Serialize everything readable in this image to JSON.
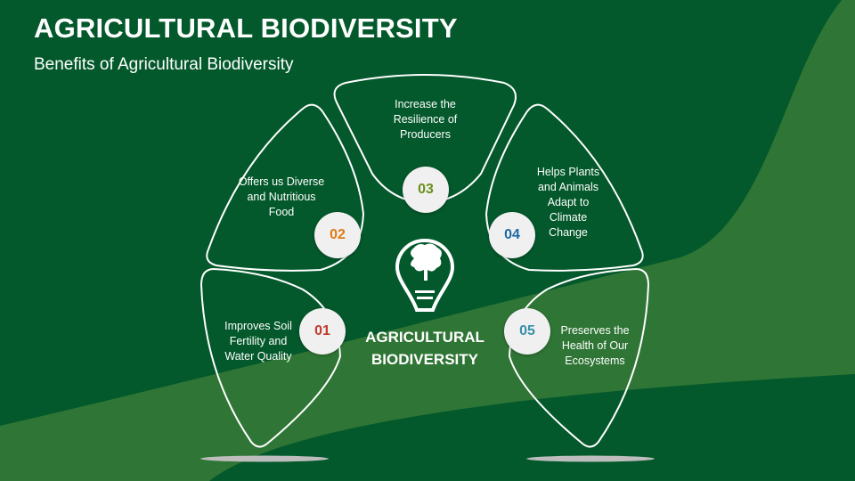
{
  "header": {
    "title": "AGRICULTURAL BIODIVERSITY",
    "subtitle": "Benefits of Agricultural Biodiversity"
  },
  "center": {
    "label_line1": "AGRICULTURAL",
    "label_line2": "BIODIVERSITY",
    "icon": "tree-lightbulb-icon"
  },
  "items": [
    {
      "number": "01",
      "text": "Improves Soil Fertility and Water Quality",
      "color": "#c0392b"
    },
    {
      "number": "02",
      "text": "Offers us Diverse and Nutritious Food",
      "color": "#e07b10"
    },
    {
      "number": "03",
      "text": "Increase the Resilience of Producers",
      "color": "#6a8f1f"
    },
    {
      "number": "04",
      "text": "Helps Plants and Animals Adapt to Climate Change",
      "color": "#1f6aa5"
    },
    {
      "number": "05",
      "text": "Preserves the Health of Our Ecosystems",
      "color": "#3a8fa8"
    }
  ],
  "colors": {
    "background": "#03592b",
    "band": "#2f7535",
    "outline": "#ffffff"
  }
}
